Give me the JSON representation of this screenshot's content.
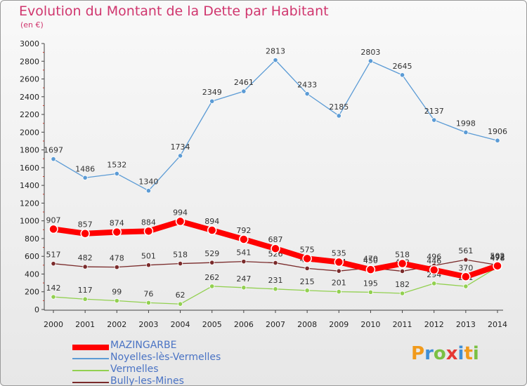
{
  "title": "Evolution du Montant de la Dette par Habitant",
  "subtitle": "(en €)",
  "logo": {
    "text": "Proxiti",
    "letter_colors": [
      "#f19a1b",
      "#3f8fd6",
      "#7bc043",
      "#e53935",
      "#3f8fd6",
      "#f19a1b",
      "#7bc043"
    ]
  },
  "chart_data": {
    "type": "line",
    "x": [
      "2000",
      "2001",
      "2002",
      "2003",
      "2004",
      "2005",
      "2006",
      "2007",
      "2008",
      "2009",
      "2010",
      "2011",
      "2012",
      "2013",
      "2014"
    ],
    "ylim": [
      0,
      3000
    ],
    "yticks": [
      0,
      200,
      400,
      600,
      800,
      1000,
      1200,
      1400,
      1600,
      1800,
      2000,
      2200,
      2400,
      2600,
      2800,
      3000
    ],
    "grid": false,
    "legend_position": "bottom-left",
    "series": [
      {
        "name": "Noyelles-lès-Vermelles",
        "color": "#5b9bd5",
        "values": [
          1697,
          1486,
          1532,
          1340,
          1734,
          2349,
          2461,
          2813,
          2433,
          2185,
          2803,
          2645,
          2137,
          1998,
          1906
        ]
      },
      {
        "name": "Vermelles",
        "color": "#92d050",
        "values": [
          142,
          117,
          99,
          76,
          62,
          262,
          247,
          231,
          215,
          201,
          195,
          182,
          294,
          261,
          478
        ]
      },
      {
        "name": "Bully-les-Mines",
        "color": "#7a2b2b",
        "values": [
          517,
          482,
          478,
          501,
          518,
          529,
          541,
          526,
          464,
          434,
          470,
          432,
          496,
          561,
          502
        ]
      },
      {
        "name": "MAZINGARBE",
        "color": "#ff0000",
        "values": [
          907,
          857,
          874,
          884,
          994,
          894,
          792,
          687,
          575,
          535,
          450,
          518,
          446,
          370,
          492
        ]
      }
    ],
    "label_offsets_note": ""
  }
}
